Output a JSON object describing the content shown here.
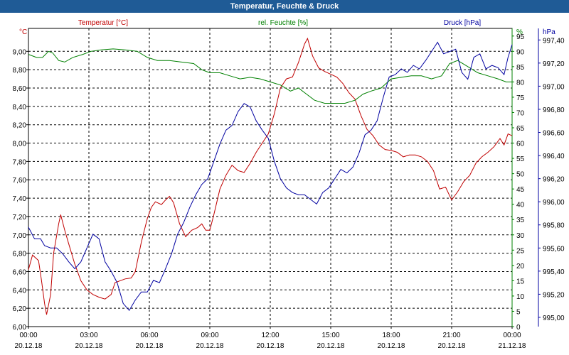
{
  "title": "Temperatur, Feuchte & Druck",
  "colors": {
    "temperature": "#c00000",
    "humidity": "#008000",
    "pressure": "#0000a0",
    "titlebar": "#1f5b96"
  },
  "chart_data": {
    "type": "line",
    "title": "Temperatur, Feuchte & Druck",
    "x_ticks": [
      {
        "x": 0,
        "time": "00:00",
        "date": "20.12.18"
      },
      {
        "x": 3,
        "time": "03:00",
        "date": "20.12.18"
      },
      {
        "x": 6,
        "time": "06:00",
        "date": "20.12.18"
      },
      {
        "x": 9,
        "time": "09:00",
        "date": "20.12.18"
      },
      {
        "x": 12,
        "time": "12:00",
        "date": "20.12.18"
      },
      {
        "x": 15,
        "time": "15:00",
        "date": "20.12.18"
      },
      {
        "x": 18,
        "time": "18:00",
        "date": "20.12.18"
      },
      {
        "x": 21,
        "time": "21:00",
        "date": "20.12.18"
      },
      {
        "x": 24,
        "time": "00:00",
        "date": "21.12.18"
      }
    ],
    "xlim": [
      0,
      24
    ],
    "grid": true,
    "axes": {
      "left": {
        "unit": "°C",
        "ylim": [
          6.0,
          9.25
        ],
        "ticks": [
          "6,00",
          "6,20",
          "6,40",
          "6,60",
          "6,80",
          "7,00",
          "7,20",
          "7,40",
          "7,60",
          "7,80",
          "8,00",
          "8,20",
          "8,40",
          "8,60",
          "8,80",
          "9,00"
        ],
        "tick_values": [
          6.0,
          6.2,
          6.4,
          6.6,
          6.8,
          7.0,
          7.2,
          7.4,
          7.6,
          7.8,
          8.0,
          8.2,
          8.4,
          8.6,
          8.8,
          9.0
        ]
      },
      "right1": {
        "unit": "%",
        "ylim": [
          0,
          97.5
        ],
        "ticks": [
          "0",
          "5",
          "10",
          "15",
          "20",
          "25",
          "30",
          "35",
          "40",
          "45",
          "50",
          "55",
          "60",
          "65",
          "70",
          "75",
          "80",
          "85",
          "90",
          "95"
        ],
        "tick_values": [
          0,
          5,
          10,
          15,
          20,
          25,
          30,
          35,
          40,
          45,
          50,
          55,
          60,
          65,
          70,
          75,
          80,
          85,
          90,
          95
        ]
      },
      "right2": {
        "unit": "hPa",
        "ylim": [
          994.92,
          997.5
        ],
        "ticks": [
          "995,00",
          "995,20",
          "995,40",
          "995,60",
          "995,80",
          "996,00",
          "996,20",
          "996,40",
          "996,60",
          "996,80",
          "997,00",
          "997,20",
          "997,40"
        ],
        "tick_values": [
          995.0,
          995.2,
          995.4,
          995.6,
          995.8,
          996.0,
          996.2,
          996.4,
          996.6,
          996.8,
          997.0,
          997.2,
          997.4
        ]
      }
    },
    "series": [
      {
        "name": "Temperatur [°C]",
        "axis": "left",
        "key": "temperature",
        "points": [
          [
            0,
            6.62
          ],
          [
            0.2,
            6.78
          ],
          [
            0.5,
            6.72
          ],
          [
            0.65,
            6.5
          ],
          [
            0.8,
            6.25
          ],
          [
            0.9,
            6.13
          ],
          [
            1.1,
            6.35
          ],
          [
            1.25,
            6.8
          ],
          [
            1.5,
            7.12
          ],
          [
            1.6,
            7.22
          ],
          [
            1.8,
            7.05
          ],
          [
            2.0,
            6.9
          ],
          [
            2.3,
            6.68
          ],
          [
            2.6,
            6.5
          ],
          [
            2.9,
            6.4
          ],
          [
            3.2,
            6.35
          ],
          [
            3.5,
            6.32
          ],
          [
            3.8,
            6.3
          ],
          [
            4.1,
            6.35
          ],
          [
            4.3,
            6.48
          ],
          [
            4.8,
            6.52
          ],
          [
            5.1,
            6.53
          ],
          [
            5.3,
            6.6
          ],
          [
            5.6,
            6.92
          ],
          [
            5.9,
            7.18
          ],
          [
            6.1,
            7.3
          ],
          [
            6.3,
            7.36
          ],
          [
            6.6,
            7.33
          ],
          [
            6.8,
            7.38
          ],
          [
            7.0,
            7.42
          ],
          [
            7.2,
            7.35
          ],
          [
            7.5,
            7.12
          ],
          [
            7.8,
            6.98
          ],
          [
            8.1,
            7.05
          ],
          [
            8.4,
            7.08
          ],
          [
            8.6,
            7.12
          ],
          [
            8.8,
            7.05
          ],
          [
            9.0,
            7.05
          ],
          [
            9.2,
            7.22
          ],
          [
            9.5,
            7.5
          ],
          [
            9.8,
            7.65
          ],
          [
            10.1,
            7.76
          ],
          [
            10.4,
            7.7
          ],
          [
            10.7,
            7.68
          ],
          [
            11.0,
            7.78
          ],
          [
            11.3,
            7.9
          ],
          [
            11.6,
            8.0
          ],
          [
            11.9,
            8.1
          ],
          [
            12.2,
            8.32
          ],
          [
            12.5,
            8.6
          ],
          [
            12.8,
            8.7
          ],
          [
            13.1,
            8.72
          ],
          [
            13.4,
            8.88
          ],
          [
            13.7,
            9.08
          ],
          [
            13.85,
            9.14
          ],
          [
            14.1,
            8.95
          ],
          [
            14.4,
            8.82
          ],
          [
            14.7,
            8.78
          ],
          [
            15.0,
            8.75
          ],
          [
            15.3,
            8.72
          ],
          [
            15.6,
            8.65
          ],
          [
            15.9,
            8.55
          ],
          [
            16.2,
            8.48
          ],
          [
            16.5,
            8.3
          ],
          [
            16.8,
            8.15
          ],
          [
            17.1,
            8.08
          ],
          [
            17.4,
            7.98
          ],
          [
            17.7,
            7.93
          ],
          [
            18.0,
            7.92
          ],
          [
            18.3,
            7.9
          ],
          [
            18.6,
            7.85
          ],
          [
            18.9,
            7.87
          ],
          [
            19.2,
            7.87
          ],
          [
            19.5,
            7.85
          ],
          [
            19.8,
            7.8
          ],
          [
            20.1,
            7.7
          ],
          [
            20.4,
            7.5
          ],
          [
            20.7,
            7.52
          ],
          [
            21.0,
            7.38
          ],
          [
            21.3,
            7.47
          ],
          [
            21.6,
            7.58
          ],
          [
            21.9,
            7.65
          ],
          [
            22.2,
            7.78
          ],
          [
            22.5,
            7.85
          ],
          [
            22.8,
            7.9
          ],
          [
            23.1,
            7.96
          ],
          [
            23.4,
            8.05
          ],
          [
            23.6,
            7.98
          ],
          [
            23.8,
            8.1
          ],
          [
            24.0,
            8.08
          ]
        ]
      },
      {
        "name": "rel. Feuchte [%]",
        "axis": "right1",
        "key": "humidity",
        "points": [
          [
            0,
            89
          ],
          [
            0.4,
            88
          ],
          [
            0.7,
            88
          ],
          [
            1.0,
            90
          ],
          [
            1.2,
            89.5
          ],
          [
            1.5,
            87
          ],
          [
            1.8,
            86.5
          ],
          [
            2.2,
            88
          ],
          [
            2.7,
            89
          ],
          [
            3.1,
            90
          ],
          [
            3.6,
            90.5
          ],
          [
            4.2,
            90.8
          ],
          [
            4.8,
            90.5
          ],
          [
            5.4,
            90
          ],
          [
            5.9,
            88
          ],
          [
            6.4,
            87
          ],
          [
            7.0,
            87
          ],
          [
            7.6,
            86.5
          ],
          [
            8.2,
            86
          ],
          [
            8.6,
            84
          ],
          [
            9.0,
            83
          ],
          [
            9.5,
            83
          ],
          [
            10.0,
            82
          ],
          [
            10.5,
            81
          ],
          [
            11.0,
            81.5
          ],
          [
            11.5,
            81
          ],
          [
            12.0,
            80
          ],
          [
            12.5,
            79
          ],
          [
            13.0,
            77
          ],
          [
            13.4,
            78
          ],
          [
            13.8,
            76
          ],
          [
            14.2,
            74
          ],
          [
            14.7,
            73
          ],
          [
            15.2,
            73
          ],
          [
            15.7,
            73
          ],
          [
            16.2,
            74
          ],
          [
            16.6,
            76
          ],
          [
            17.0,
            77
          ],
          [
            17.5,
            78
          ],
          [
            18.0,
            81
          ],
          [
            18.5,
            81.5
          ],
          [
            19.0,
            82
          ],
          [
            19.5,
            82
          ],
          [
            20.0,
            81
          ],
          [
            20.5,
            82
          ],
          [
            20.9,
            86
          ],
          [
            21.3,
            87
          ],
          [
            21.8,
            85
          ],
          [
            22.3,
            83
          ],
          [
            22.8,
            82
          ],
          [
            23.3,
            81
          ],
          [
            23.7,
            80
          ],
          [
            24.0,
            80
          ]
        ]
      },
      {
        "name": "Druck [hPa]",
        "axis": "right2",
        "key": "pressure",
        "points": [
          [
            0,
            995.78
          ],
          [
            0.3,
            995.68
          ],
          [
            0.6,
            995.68
          ],
          [
            0.8,
            995.62
          ],
          [
            1.1,
            995.6
          ],
          [
            1.4,
            995.6
          ],
          [
            1.7,
            995.55
          ],
          [
            2.0,
            995.48
          ],
          [
            2.3,
            995.42
          ],
          [
            2.6,
            995.48
          ],
          [
            2.9,
            995.6
          ],
          [
            3.2,
            995.72
          ],
          [
            3.5,
            995.68
          ],
          [
            3.8,
            995.48
          ],
          [
            4.1,
            995.4
          ],
          [
            4.4,
            995.3
          ],
          [
            4.7,
            995.12
          ],
          [
            5.0,
            995.06
          ],
          [
            5.3,
            995.15
          ],
          [
            5.6,
            995.22
          ],
          [
            5.9,
            995.22
          ],
          [
            6.2,
            995.32
          ],
          [
            6.5,
            995.3
          ],
          [
            6.8,
            995.42
          ],
          [
            7.1,
            995.55
          ],
          [
            7.4,
            995.72
          ],
          [
            7.7,
            995.82
          ],
          [
            8.0,
            995.95
          ],
          [
            8.3,
            996.06
          ],
          [
            8.6,
            996.15
          ],
          [
            8.9,
            996.2
          ],
          [
            9.2,
            996.35
          ],
          [
            9.5,
            996.5
          ],
          [
            9.8,
            996.62
          ],
          [
            10.1,
            996.66
          ],
          [
            10.4,
            996.78
          ],
          [
            10.7,
            996.85
          ],
          [
            11.0,
            996.82
          ],
          [
            11.3,
            996.7
          ],
          [
            11.6,
            996.62
          ],
          [
            11.9,
            996.55
          ],
          [
            12.2,
            996.35
          ],
          [
            12.5,
            996.2
          ],
          [
            12.8,
            996.12
          ],
          [
            13.1,
            996.08
          ],
          [
            13.4,
            996.06
          ],
          [
            13.7,
            996.06
          ],
          [
            14.0,
            996.02
          ],
          [
            14.3,
            995.98
          ],
          [
            14.6,
            996.08
          ],
          [
            14.9,
            996.12
          ],
          [
            15.2,
            996.2
          ],
          [
            15.5,
            996.28
          ],
          [
            15.8,
            996.25
          ],
          [
            16.1,
            996.3
          ],
          [
            16.4,
            996.42
          ],
          [
            16.7,
            996.58
          ],
          [
            17.0,
            996.62
          ],
          [
            17.3,
            996.7
          ],
          [
            17.6,
            996.9
          ],
          [
            17.9,
            997.08
          ],
          [
            18.2,
            997.1
          ],
          [
            18.5,
            997.15
          ],
          [
            18.8,
            997.12
          ],
          [
            19.1,
            997.18
          ],
          [
            19.4,
            997.15
          ],
          [
            19.7,
            997.22
          ],
          [
            20.0,
            997.3
          ],
          [
            20.3,
            997.38
          ],
          [
            20.6,
            997.28
          ],
          [
            20.9,
            997.3
          ],
          [
            21.2,
            997.32
          ],
          [
            21.5,
            997.12
          ],
          [
            21.8,
            997.06
          ],
          [
            22.1,
            997.25
          ],
          [
            22.4,
            997.28
          ],
          [
            22.7,
            997.15
          ],
          [
            23.0,
            997.18
          ],
          [
            23.3,
            997.16
          ],
          [
            23.6,
            997.1
          ],
          [
            23.8,
            997.25
          ],
          [
            24.0,
            997.36
          ]
        ]
      }
    ]
  }
}
